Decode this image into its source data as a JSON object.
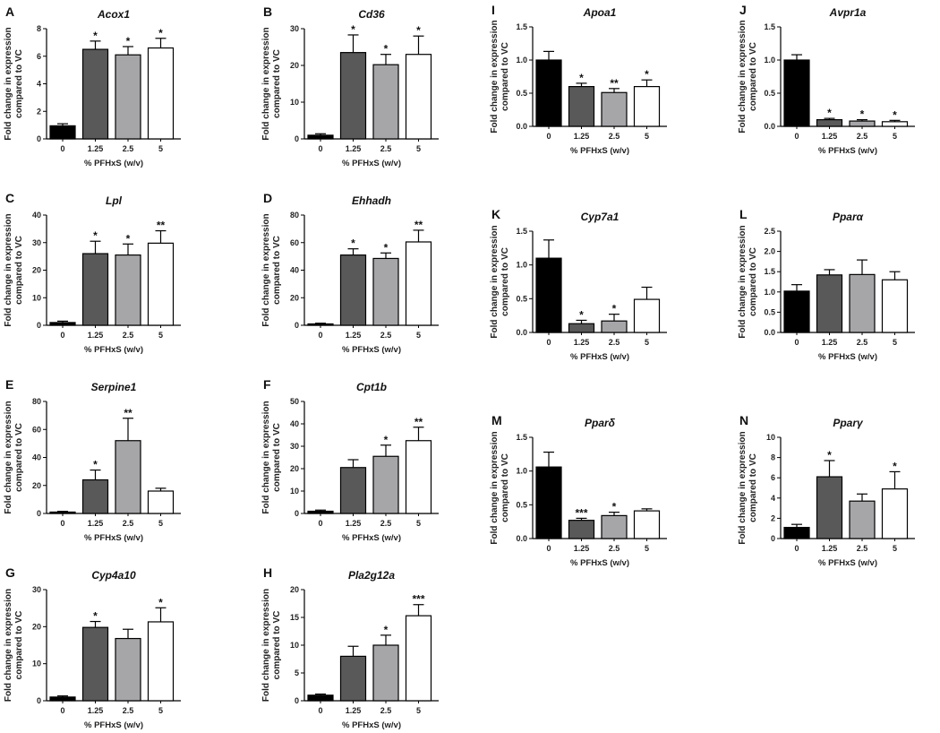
{
  "figure": {
    "colors": [
      "#000000",
      "#595959",
      "#a6a6a9",
      "#ffffff"
    ]
  },
  "chart_data": [
    {
      "id": "A",
      "letter": "A",
      "title": "Acox1",
      "type": "bar",
      "categories": [
        "0",
        "1.25",
        "2.5",
        "5"
      ],
      "values": [
        0.95,
        6.5,
        6.1,
        6.6
      ],
      "errors": [
        0.15,
        0.6,
        0.6,
        0.7
      ],
      "significance": [
        "",
        "*",
        "*",
        "*"
      ],
      "yticks": [
        "0",
        "2",
        "4",
        "6",
        "8"
      ],
      "ylim": [
        0,
        8
      ],
      "xlabel": "%  PFHxS (w/v)",
      "ylabel_lines": [
        "Fold  change in expression",
        "compared to VC"
      ]
    },
    {
      "id": "B",
      "letter": "B",
      "title": "Cd36",
      "type": "bar",
      "categories": [
        "0",
        "1.25",
        "2.5",
        "5"
      ],
      "values": [
        1.0,
        23.5,
        20.2,
        23.0
      ],
      "errors": [
        0.4,
        4.8,
        2.8,
        5.0
      ],
      "significance": [
        "",
        "*",
        "*",
        "*"
      ],
      "yticks": [
        "0",
        "10",
        "20",
        "30"
      ],
      "ylim": [
        0,
        30
      ],
      "xlabel": "%  PFHxS (w/v)",
      "ylabel_lines": [
        "Fold  change in expression",
        "compared to VC"
      ]
    },
    {
      "id": "C",
      "letter": "C",
      "title": "Lpl",
      "type": "bar",
      "categories": [
        "0",
        "1.25",
        "2.5",
        "5"
      ],
      "values": [
        1.0,
        26.0,
        25.5,
        29.8
      ],
      "errors": [
        0.5,
        4.5,
        4.0,
        4.5
      ],
      "significance": [
        "",
        "*",
        "*",
        "**"
      ],
      "yticks": [
        "0",
        "10",
        "20",
        "30",
        "40"
      ],
      "ylim": [
        0,
        40
      ],
      "xlabel": "%  PFHxS (w/v)",
      "ylabel_lines": [
        "Fold  change in expression",
        "compared to VC"
      ]
    },
    {
      "id": "D",
      "letter": "D",
      "title": "Ehhadh",
      "type": "bar",
      "categories": [
        "0",
        "1.25",
        "2.5",
        "5"
      ],
      "values": [
        1.0,
        51.0,
        48.5,
        60.5
      ],
      "errors": [
        0.5,
        4.5,
        4.0,
        8.5
      ],
      "significance": [
        "",
        "*",
        "*",
        "**"
      ],
      "yticks": [
        "0",
        "20",
        "40",
        "60",
        "80"
      ],
      "ylim": [
        0,
        80
      ],
      "xlabel": "%  PFHxS (w/v)",
      "ylabel_lines": [
        "Fold  change in expression",
        "compared to VC"
      ]
    },
    {
      "id": "E",
      "letter": "E",
      "title": "Serpine1",
      "type": "bar",
      "categories": [
        "0",
        "1.25",
        "2.5",
        "5"
      ],
      "values": [
        1.0,
        24.0,
        52.0,
        16.0
      ],
      "errors": [
        0.5,
        7.0,
        16.0,
        2.0
      ],
      "significance": [
        "",
        "*",
        "**",
        ""
      ],
      "yticks": [
        "0",
        "20",
        "40",
        "60",
        "80"
      ],
      "ylim": [
        0,
        80
      ],
      "xlabel": "%  PFHxS (w/v)",
      "ylabel_lines": [
        "Fold  change in expression",
        "compared to VC"
      ]
    },
    {
      "id": "F",
      "letter": "F",
      "title": "Cpt1b",
      "type": "bar",
      "categories": [
        "0",
        "1.25",
        "2.5",
        "5"
      ],
      "values": [
        1.0,
        20.5,
        25.5,
        32.5
      ],
      "errors": [
        0.5,
        3.5,
        5.0,
        6.0
      ],
      "significance": [
        "",
        "",
        "*",
        "**"
      ],
      "yticks": [
        "0",
        "10",
        "20",
        "30",
        "40",
        "50"
      ],
      "ylim": [
        0,
        50
      ],
      "xlabel": "%  PFHxS (w/v)",
      "ylabel_lines": [
        "Fold  change in expression",
        "compared to VC"
      ]
    },
    {
      "id": "G",
      "letter": "G",
      "title": "Cyp4a10",
      "type": "bar",
      "categories": [
        "0",
        "1.25",
        "2.5",
        "5"
      ],
      "values": [
        1.0,
        19.8,
        16.8,
        21.3
      ],
      "errors": [
        0.3,
        1.6,
        2.5,
        3.8
      ],
      "significance": [
        "",
        "*",
        "",
        "*"
      ],
      "yticks": [
        "0",
        "10",
        "20",
        "30"
      ],
      "ylim": [
        0,
        30
      ],
      "xlabel": "%  PFHxS (w/v)",
      "ylabel_lines": [
        "Fold  change in expression",
        "compared to VC"
      ]
    },
    {
      "id": "H",
      "letter": "H",
      "title": "Pla2g12a",
      "type": "bar",
      "categories": [
        "0",
        "1.25",
        "2.5",
        "5"
      ],
      "values": [
        1.0,
        8.0,
        10.0,
        15.3
      ],
      "errors": [
        0.2,
        1.8,
        1.8,
        2.0
      ],
      "significance": [
        "",
        "",
        "*",
        "***"
      ],
      "yticks": [
        "0",
        "5",
        "10",
        "15",
        "20"
      ],
      "ylim": [
        0,
        20
      ],
      "xlabel": "%  PFHxS (w/v)",
      "ylabel_lines": [
        "Fold  change in expression",
        "compared to VC"
      ]
    },
    {
      "id": "I",
      "letter": "I",
      "title": "Apoa1",
      "type": "bar",
      "categories": [
        "0",
        "1.25",
        "2.5",
        "5"
      ],
      "values": [
        1.0,
        0.6,
        0.51,
        0.6
      ],
      "errors": [
        0.13,
        0.05,
        0.06,
        0.1
      ],
      "significance": [
        "",
        "*",
        "**",
        "*"
      ],
      "yticks": [
        "0.0",
        "0.5",
        "1.0",
        "1.5"
      ],
      "ylim": [
        0,
        1.5
      ],
      "xlabel": "%  PFHxS (w/v)",
      "ylabel_lines": [
        "Fold  change in expression",
        "compared to VC"
      ]
    },
    {
      "id": "J",
      "letter": "J",
      "title": "Avpr1a",
      "type": "bar",
      "categories": [
        "0",
        "1.25",
        "2.5",
        "5"
      ],
      "values": [
        1.0,
        0.1,
        0.08,
        0.07
      ],
      "errors": [
        0.08,
        0.02,
        0.02,
        0.02
      ],
      "significance": [
        "",
        "*",
        "*",
        "*"
      ],
      "yticks": [
        "0.0",
        "0.5",
        "1.0",
        "1.5"
      ],
      "ylim": [
        0,
        1.5
      ],
      "xlabel": "%  PFHxS (w/v)",
      "ylabel_lines": [
        "Fold  change in expression",
        "compared to VC"
      ]
    },
    {
      "id": "K",
      "letter": "K",
      "title": "Cyp7a1",
      "type": "bar",
      "categories": [
        "0",
        "1.25",
        "2.5",
        "5"
      ],
      "values": [
        1.1,
        0.13,
        0.17,
        0.49
      ],
      "errors": [
        0.27,
        0.05,
        0.1,
        0.18
      ],
      "significance": [
        "",
        "*",
        "*",
        ""
      ],
      "yticks": [
        "0.0",
        "0.5",
        "1.0",
        "1.5"
      ],
      "ylim": [
        0,
        1.5
      ],
      "xlabel": "%  PFHxS (w/v)",
      "ylabel_lines": [
        "Fold  change in expression",
        "compared to VC"
      ]
    },
    {
      "id": "L",
      "letter": "L",
      "title": "Pparα",
      "type": "bar",
      "categories": [
        "0",
        "1.25",
        "2.5",
        "5"
      ],
      "values": [
        1.02,
        1.42,
        1.43,
        1.3
      ],
      "errors": [
        0.16,
        0.13,
        0.36,
        0.2
      ],
      "significance": [
        "",
        "",
        "",
        ""
      ],
      "yticks": [
        "0.0",
        "0.5",
        "1.0",
        "1.5",
        "2.0",
        "2.5"
      ],
      "ylim": [
        0,
        2.5
      ],
      "xlabel": "%  PFHxS (w/v)",
      "ylabel_lines": [
        "Fold  change in expression",
        "compared to VC"
      ]
    },
    {
      "id": "M",
      "letter": "M",
      "title": "Pparδ",
      "type": "bar",
      "categories": [
        "0",
        "1.25",
        "2.5",
        "5"
      ],
      "values": [
        1.06,
        0.27,
        0.34,
        0.41
      ],
      "errors": [
        0.22,
        0.03,
        0.05,
        0.03
      ],
      "significance": [
        "",
        "***",
        "*",
        ""
      ],
      "yticks": [
        "0.0",
        "0.5",
        "1.0",
        "1.5"
      ],
      "ylim": [
        0,
        1.5
      ],
      "xlabel": "%  PFHxS (w/v)",
      "ylabel_lines": [
        "Fold  change in expression",
        "compared to VC"
      ]
    },
    {
      "id": "N",
      "letter": "N",
      "title": "Pparγ",
      "type": "bar",
      "categories": [
        "0",
        "1.25",
        "2.5",
        "5"
      ],
      "values": [
        1.1,
        6.1,
        3.7,
        4.9
      ],
      "errors": [
        0.3,
        1.6,
        0.7,
        1.7
      ],
      "significance": [
        "",
        "*",
        "",
        "*"
      ],
      "yticks": [
        "0",
        "2",
        "4",
        "6",
        "8",
        "10"
      ],
      "ylim": [
        0,
        10
      ],
      "xlabel": "%  PFHxS (w/v)",
      "ylabel_lines": [
        "Fold  change in expression",
        "compared to VC"
      ]
    }
  ]
}
